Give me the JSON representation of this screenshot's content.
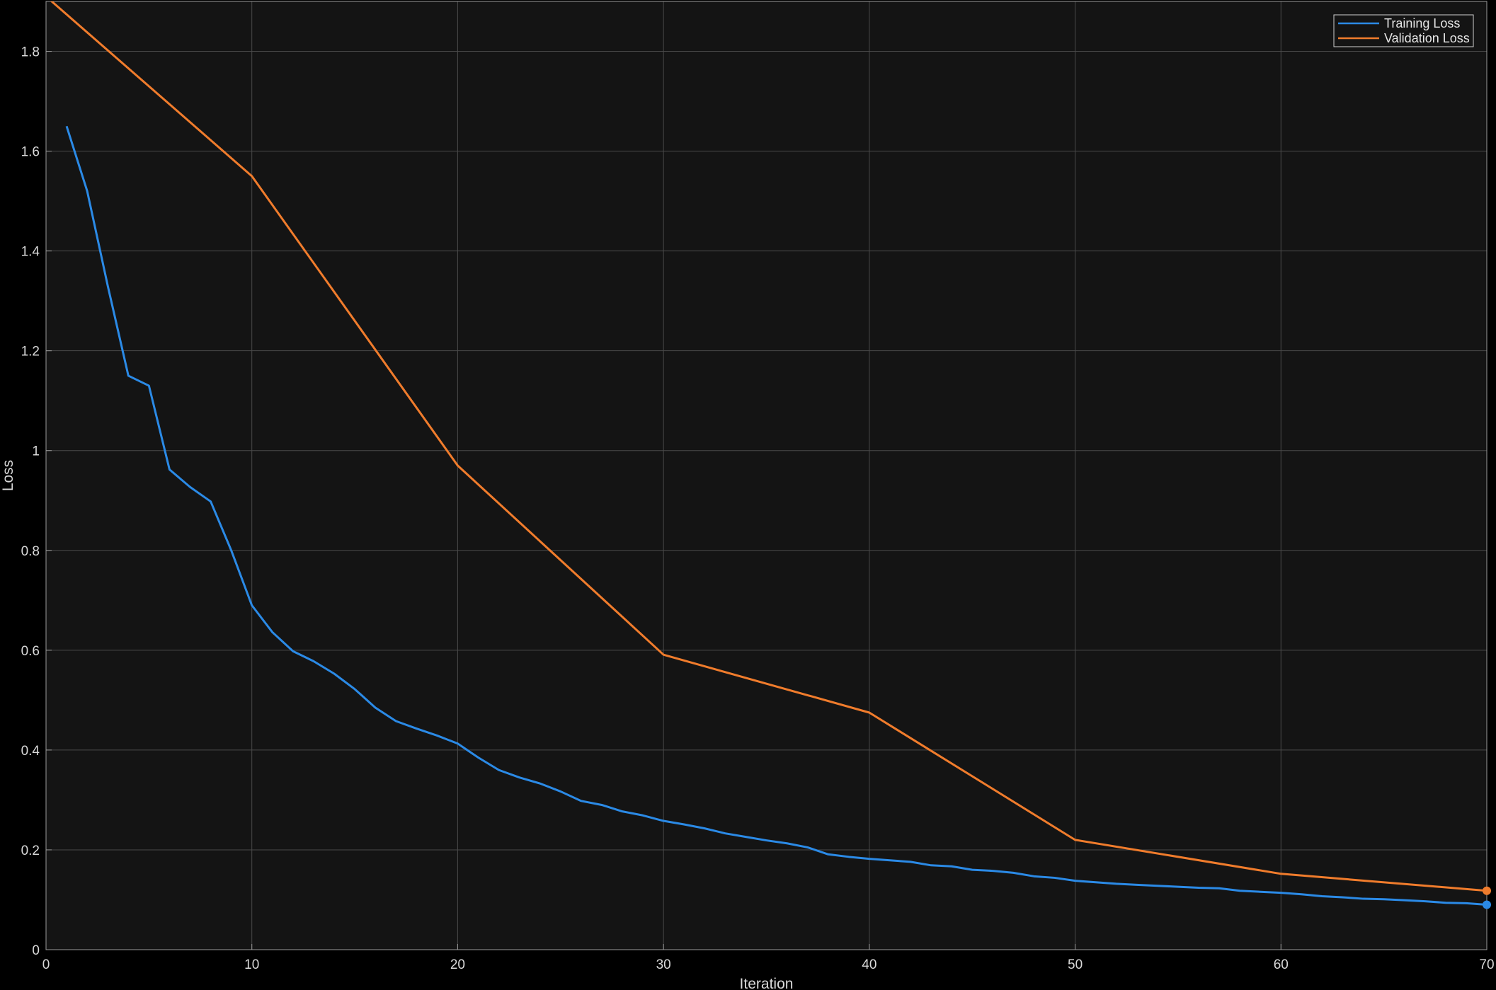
{
  "chart_data": {
    "type": "line",
    "title": "",
    "xlabel": "Iteration",
    "ylabel": "Loss",
    "xlim": [
      0,
      70
    ],
    "ylim": [
      0,
      1.9
    ],
    "x_ticks": [
      0,
      10,
      20,
      30,
      40,
      50,
      60,
      70
    ],
    "y_ticks": [
      0,
      0.2,
      0.4,
      0.6,
      0.8,
      1,
      1.2,
      1.4,
      1.6,
      1.8
    ],
    "x_tick_labels": [
      "0",
      "10",
      "20",
      "30",
      "40",
      "50",
      "60",
      "70"
    ],
    "y_tick_labels": [
      "0",
      "0.2",
      "0.4",
      "0.6",
      "0.8",
      "1",
      "1.2",
      "1.4",
      "1.6",
      "1.8"
    ],
    "grid": true,
    "legend_position": "top-right",
    "series": [
      {
        "name": "Training Loss",
        "color": "#2b8ae6",
        "x": [
          1,
          2,
          3,
          4,
          5,
          6,
          7,
          8,
          9,
          10,
          11,
          12,
          13,
          14,
          15,
          16,
          17,
          18,
          19,
          20,
          21,
          22,
          23,
          24,
          25,
          26,
          27,
          28,
          29,
          30,
          31,
          32,
          33,
          34,
          35,
          36,
          37,
          38,
          39,
          40,
          41,
          42,
          43,
          44,
          45,
          46,
          47,
          48,
          49,
          50,
          51,
          52,
          53,
          54,
          55,
          56,
          57,
          58,
          59,
          60,
          61,
          62,
          63,
          64,
          65,
          66,
          67,
          68,
          69,
          70
        ],
        "y": [
          1.65,
          1.52,
          1.33,
          1.15,
          1.13,
          0.962,
          0.927,
          0.898,
          0.8,
          0.69,
          0.636,
          0.598,
          0.578,
          0.553,
          0.522,
          0.485,
          0.458,
          0.443,
          0.429,
          0.413,
          0.385,
          0.36,
          0.345,
          0.333,
          0.317,
          0.298,
          0.29,
          0.277,
          0.269,
          0.258,
          0.251,
          0.243,
          0.233,
          0.226,
          0.219,
          0.213,
          0.205,
          0.191,
          0.186,
          0.182,
          0.179,
          0.176,
          0.169,
          0.167,
          0.16,
          0.158,
          0.154,
          0.147,
          0.144,
          0.138,
          0.135,
          0.132,
          0.13,
          0.128,
          0.126,
          0.124,
          0.123,
          0.118,
          0.116,
          0.114,
          0.111,
          0.107,
          0.105,
          0.102,
          0.101,
          0.099,
          0.097,
          0.094,
          0.093,
          0.09
        ],
        "end_marker": true
      },
      {
        "name": "Validation Loss",
        "color": "#f07c2c",
        "x": [
          0,
          10,
          20,
          30,
          40,
          50,
          60,
          70
        ],
        "y": [
          1.91,
          1.55,
          0.97,
          0.591,
          0.475,
          0.22,
          0.152,
          0.118
        ],
        "end_marker": true
      }
    ]
  }
}
